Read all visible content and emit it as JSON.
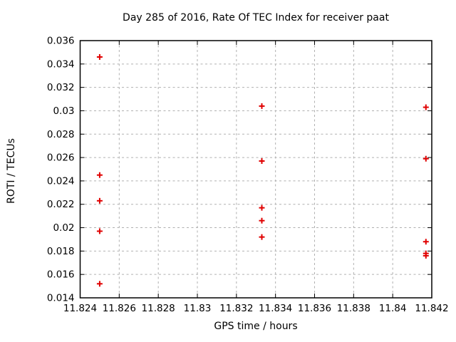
{
  "chart_data": {
    "type": "scatter",
    "title": "Day 285 of 2016, Rate Of TEC Index for receiver paat",
    "xlabel": "GPS time / hours",
    "ylabel": "ROTI / TECUs",
    "xlim": [
      11.824,
      11.842
    ],
    "ylim": [
      0.014,
      0.036
    ],
    "xticks": [
      11.824,
      11.826,
      11.828,
      11.83,
      11.832,
      11.834,
      11.836,
      11.838,
      11.84,
      11.842
    ],
    "xtick_labels": [
      "11.824",
      "11.826",
      "11.828",
      "11.83",
      "11.832",
      "11.834",
      "11.836",
      "11.838",
      "11.84",
      "11.842"
    ],
    "yticks": [
      0.014,
      0.016,
      0.018,
      0.02,
      0.022,
      0.024,
      0.026,
      0.028,
      0.03,
      0.032,
      0.034,
      0.036
    ],
    "ytick_labels": [
      "0.014",
      "0.016",
      "0.018",
      "0.02",
      "0.022",
      "0.024",
      "0.026",
      "0.028",
      "0.03",
      "0.032",
      "0.034",
      "0.036"
    ],
    "grid": true,
    "legend": "none",
    "marker": "plus",
    "marker_color": "#e00000",
    "series": [
      {
        "name": "ROTI",
        "points": [
          [
            11.825,
            0.0346
          ],
          [
            11.825,
            0.0245
          ],
          [
            11.825,
            0.0223
          ],
          [
            11.825,
            0.0197
          ],
          [
            11.825,
            0.0152
          ],
          [
            11.8333,
            0.0304
          ],
          [
            11.8333,
            0.0257
          ],
          [
            11.8333,
            0.0217
          ],
          [
            11.8333,
            0.0206
          ],
          [
            11.8333,
            0.0192
          ],
          [
            11.8417,
            0.0303
          ],
          [
            11.8417,
            0.0259
          ],
          [
            11.8417,
            0.0188
          ],
          [
            11.8417,
            0.0178
          ],
          [
            11.8417,
            0.0176
          ]
        ]
      }
    ]
  }
}
